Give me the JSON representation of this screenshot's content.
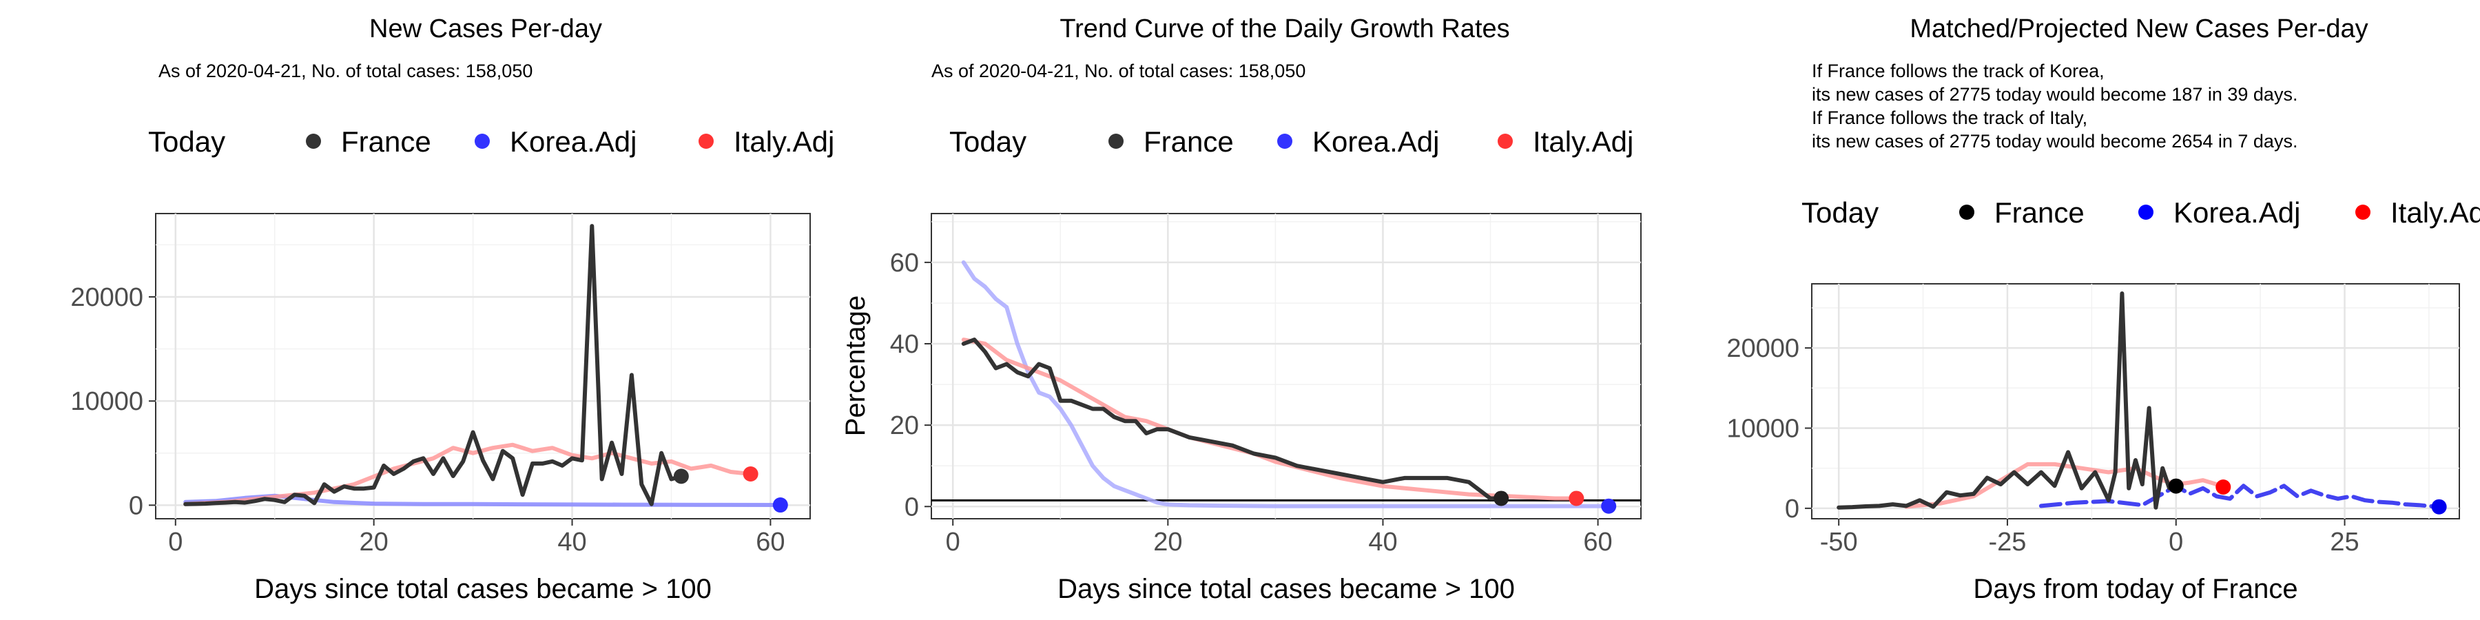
{
  "chart_data": [
    {
      "type": "line",
      "title": "New Cases Per-day",
      "subtitle": "As of 2020-04-21, No. of total cases: 158,050",
      "legend_title": "Today",
      "legend_position": "top",
      "xlabel": "Days since total cases became > 100",
      "ylabel": "",
      "xlim": [
        -2,
        64
      ],
      "ylim": [
        -1300,
        28000
      ],
      "xticks": [
        0,
        20,
        40,
        60
      ],
      "yticks": [
        0,
        10000,
        20000
      ],
      "grid": true,
      "series": [
        {
          "name": "France",
          "color": "#333333",
          "x": [
            1,
            2,
            3,
            4,
            5,
            6,
            7,
            8,
            9,
            10,
            11,
            12,
            13,
            14,
            15,
            16,
            17,
            18,
            19,
            20,
            21,
            22,
            23,
            24,
            25,
            26,
            27,
            28,
            29,
            30,
            31,
            32,
            33,
            34,
            35,
            36,
            37,
            38,
            39,
            40,
            41,
            42,
            43,
            44,
            45,
            46,
            47,
            48,
            49,
            50,
            51
          ],
          "y": [
            100,
            120,
            150,
            200,
            250,
            300,
            250,
            400,
            600,
            500,
            300,
            1000,
            900,
            200,
            2000,
            1300,
            1800,
            1600,
            1600,
            1700,
            3800,
            3000,
            3500,
            4200,
            4500,
            3000,
            4500,
            2800,
            4200,
            7000,
            4300,
            2500,
            5200,
            4500,
            1000,
            4000,
            4000,
            4200,
            3800,
            4500,
            4300,
            26800,
            2500,
            6000,
            3000,
            12500,
            2000,
            100,
            5000,
            2500,
            2775
          ],
          "today": {
            "x": 51,
            "y": 2775
          }
        },
        {
          "name": "Korea.Adj",
          "color": "#6666ff",
          "x": [
            1,
            4,
            7,
            10,
            13,
            16,
            20,
            25,
            30,
            35,
            40,
            45,
            50,
            55,
            60,
            61
          ],
          "y": [
            300,
            400,
            700,
            900,
            600,
            300,
            150,
            100,
            100,
            80,
            60,
            50,
            40,
            30,
            20,
            20
          ],
          "today": {
            "x": 61,
            "y": 20
          }
        },
        {
          "name": "Italy.Adj",
          "color": "#ff9999",
          "x": [
            1,
            5,
            10,
            14,
            18,
            22,
            26,
            28,
            30,
            32,
            34,
            36,
            38,
            40,
            42,
            44,
            46,
            48,
            50,
            52,
            54,
            56,
            58
          ],
          "y": [
            100,
            300,
            800,
            1200,
            2000,
            3500,
            4500,
            5500,
            5000,
            5500,
            5800,
            5200,
            5500,
            4800,
            4500,
            5000,
            4500,
            4000,
            4200,
            3500,
            3800,
            3200,
            3000
          ],
          "today": {
            "x": 58,
            "y": 3000
          }
        }
      ]
    },
    {
      "type": "line",
      "title": "Trend Curve of the Daily Growth Rates",
      "subtitle": "As of 2020-04-21, No. of total cases: 158,050",
      "legend_title": "Today",
      "legend_position": "top",
      "xlabel": "Days since total cases became > 100",
      "ylabel": "Percentage",
      "xlim": [
        -2,
        64
      ],
      "ylim": [
        -3,
        72
      ],
      "xticks": [
        0,
        20,
        40,
        60
      ],
      "yticks": [
        0,
        20,
        40,
        60
      ],
      "hline": 1.5,
      "grid": true,
      "series": [
        {
          "name": "France",
          "color": "#333333",
          "x": [
            1,
            2,
            3,
            4,
            5,
            6,
            7,
            8,
            9,
            10,
            11,
            12,
            13,
            14,
            15,
            16,
            17,
            18,
            19,
            20,
            22,
            24,
            26,
            28,
            30,
            32,
            34,
            36,
            38,
            40,
            42,
            44,
            46,
            48,
            50,
            51
          ],
          "y": [
            40,
            41,
            38,
            34,
            35,
            33,
            32,
            35,
            34,
            26,
            26,
            25,
            24,
            24,
            22,
            21,
            21,
            18,
            19,
            19,
            17,
            16,
            15,
            13,
            12,
            10,
            9,
            8,
            7,
            6,
            7,
            7,
            7,
            6,
            2,
            2
          ],
          "today": {
            "x": 51,
            "y": 2
          }
        },
        {
          "name": "Korea.Adj",
          "color": "#aaaaff",
          "x": [
            1,
            2,
            3,
            4,
            5,
            6,
            7,
            8,
            9,
            10,
            11,
            12,
            13,
            14,
            15,
            16,
            17,
            18,
            19,
            20,
            22,
            25,
            30,
            40,
            50,
            61
          ],
          "y": [
            60,
            56,
            54,
            51,
            49,
            40,
            33,
            28,
            27,
            24,
            20,
            15,
            10,
            7,
            5,
            4,
            3,
            2,
            1,
            0.5,
            0.3,
            0.2,
            0.1,
            0.1,
            0.1,
            0.1
          ],
          "today": {
            "x": 61,
            "y": 0.1
          }
        },
        {
          "name": "Italy.Adj",
          "color": "#ff9999",
          "x": [
            1,
            3,
            5,
            8,
            10,
            12,
            14,
            16,
            18,
            20,
            22,
            25,
            28,
            30,
            33,
            36,
            40,
            44,
            48,
            52,
            56,
            58
          ],
          "y": [
            41,
            40,
            36,
            33,
            31,
            28,
            25,
            22,
            21,
            19,
            17,
            15,
            13,
            11,
            9,
            7,
            5,
            4,
            3,
            2.5,
            2,
            2
          ],
          "today": {
            "x": 58,
            "y": 2
          }
        }
      ]
    },
    {
      "type": "line",
      "title": "Matched/Projected New Cases Per-day",
      "annotations": [
        "If France follows the track of Korea,",
        "its new cases of 2775 today would become 187 in 39 days.",
        "If France follows the track of Italy,",
        "its new cases of 2775 today would become 2654 in 7 days."
      ],
      "legend_title": "Today",
      "legend_position": "top",
      "xlabel": "Days from today of France",
      "ylabel": "",
      "xlim": [
        -54,
        42
      ],
      "ylim": [
        -1300,
        28000
      ],
      "xticks": [
        -50,
        -25,
        0,
        25
      ],
      "yticks": [
        0,
        10000,
        20000
      ],
      "grid": true,
      "series": [
        {
          "name": "France",
          "color": "#333333",
          "x": [
            -50,
            -48,
            -46,
            -44,
            -42,
            -40,
            -38,
            -36,
            -34,
            -32,
            -30,
            -28,
            -26,
            -24,
            -22,
            -20,
            -18,
            -16,
            -14,
            -12,
            -10,
            -9,
            -8,
            -7,
            -6,
            -5,
            -4,
            -3,
            -2,
            -1,
            0
          ],
          "y": [
            100,
            150,
            250,
            300,
            500,
            300,
            1000,
            200,
            2000,
            1600,
            1800,
            3800,
            3000,
            4500,
            3000,
            4500,
            2800,
            7000,
            2500,
            4500,
            1000,
            4500,
            26800,
            2500,
            6000,
            3000,
            12500,
            100,
            5000,
            2500,
            2775
          ],
          "today": {
            "x": 0,
            "y": 2775
          }
        },
        {
          "name": "Korea.Adj",
          "color": "#2222ee",
          "x": [
            -20,
            -15,
            -10,
            -5,
            0,
            2,
            4,
            6,
            8,
            10,
            12,
            14,
            16,
            18,
            20,
            22,
            24,
            26,
            28,
            30,
            32,
            34,
            36,
            38,
            39
          ],
          "y": [
            300,
            700,
            900,
            400,
            2775,
            1800,
            2500,
            1500,
            1200,
            2800,
            1500,
            2000,
            2800,
            1500,
            2200,
            1600,
            1200,
            1500,
            1000,
            800,
            700,
            500,
            400,
            250,
            187
          ],
          "today": {
            "x": 39,
            "y": 187
          }
        },
        {
          "name": "Italy.Adj",
          "color": "#ff9999",
          "x": [
            -40,
            -35,
            -30,
            -26,
            -22,
            -18,
            -14,
            -10,
            -6,
            -2,
            0,
            2,
            4,
            6,
            7
          ],
          "y": [
            200,
            600,
            1500,
            3500,
            5500,
            5500,
            5000,
            4500,
            5000,
            3500,
            3000,
            3200,
            3500,
            3000,
            2654
          ],
          "today": {
            "x": 7,
            "y": 2654
          }
        }
      ]
    }
  ]
}
